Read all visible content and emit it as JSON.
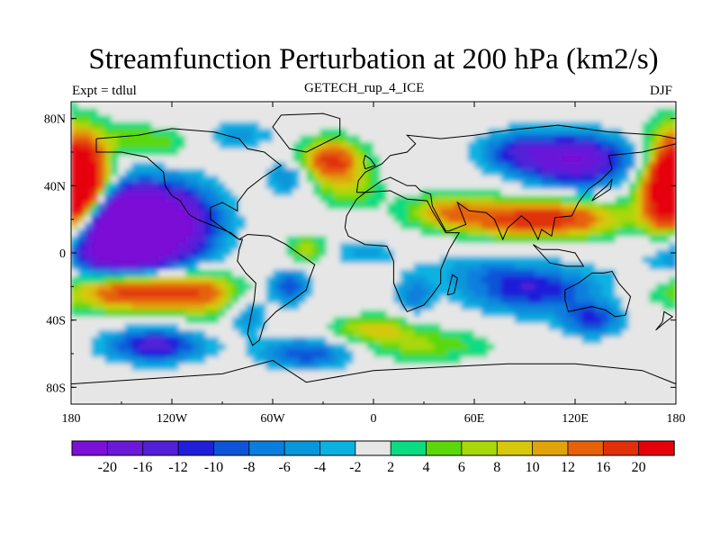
{
  "title": "Streamfunction Perturbation at 200 hPa (km2/s)",
  "subtitle": "GETECH_rup_4_ICE",
  "left_string": "Expt = tdlul",
  "right_string": "DJF",
  "chart_data": {
    "type": "heatmap",
    "projection": "cylindrical-equidistant",
    "title": "Streamfunction Perturbation at 200 hPa (km2/s)",
    "subtitle": "GETECH_rup_4_ICE",
    "season": "DJF",
    "experiment": "Expt = tdlul",
    "xlim": [
      -180,
      180
    ],
    "ylim": [
      -90,
      90
    ],
    "x_ticks": [
      -180,
      -120,
      -60,
      0,
      60,
      120,
      180
    ],
    "x_tick_labels": [
      "180",
      "120W",
      "60W",
      "0",
      "60E",
      "120E",
      "180"
    ],
    "y_ticks": [
      80,
      40,
      0,
      -40,
      -80
    ],
    "y_tick_labels": [
      "80N",
      "40N",
      "0",
      "40S",
      "80S"
    ],
    "contour_levels": [
      -20,
      -16,
      -12,
      -10,
      -8,
      -6,
      -4,
      -2,
      2,
      4,
      6,
      8,
      10,
      12,
      16,
      20
    ],
    "colorbar_labels": [
      "-20",
      "-16",
      "-12",
      "-10",
      "-8",
      "-6",
      "-4",
      "-2",
      "2",
      "4",
      "6",
      "8",
      "10",
      "12",
      "16",
      "20"
    ],
    "colors": [
      "#7c10d6",
      "#6a19d9",
      "#5120d8",
      "#1f1ed9",
      "#0c55d8",
      "#0a7ede",
      "#0a96da",
      "#0ab2e2",
      "#e6e6e6",
      "#0adc82",
      "#5ad80a",
      "#a8d80a",
      "#d6c80a",
      "#e0a30a",
      "#e6620a",
      "#e0300a",
      "#e6000a"
    ],
    "features": [
      {
        "lon": 0,
        "lat": 0,
        "value": 0
      }
    ]
  }
}
